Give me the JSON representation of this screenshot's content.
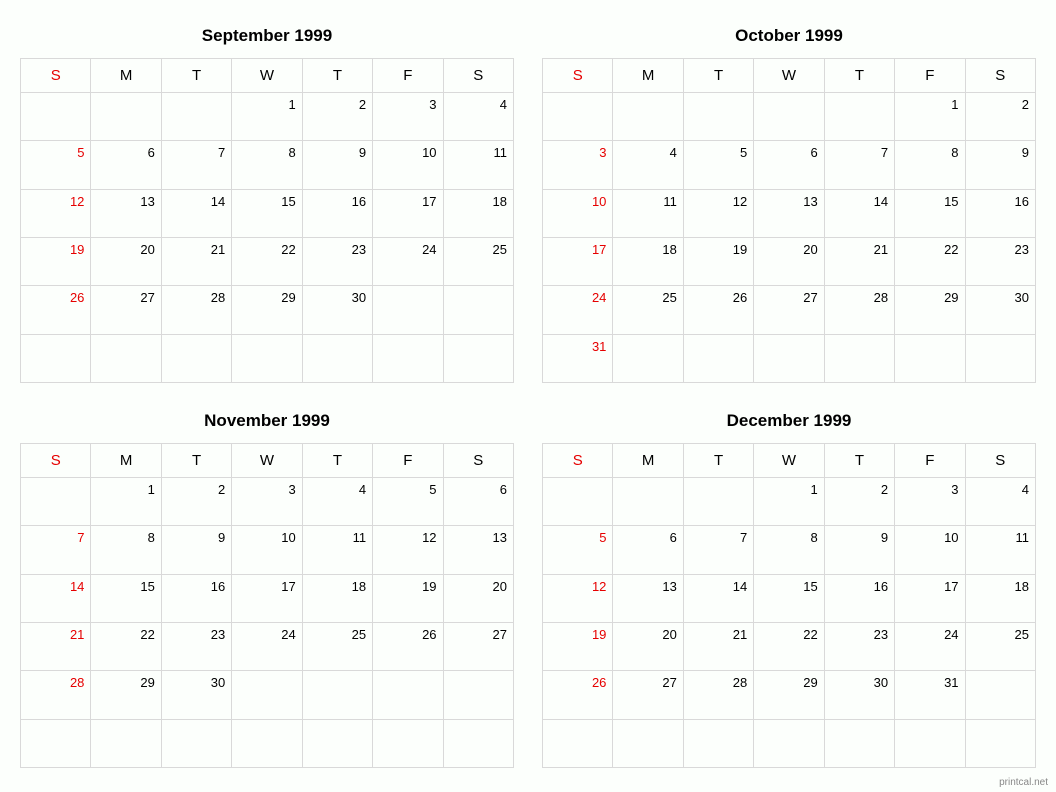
{
  "day_headers": [
    "S",
    "M",
    "T",
    "W",
    "T",
    "F",
    "S"
  ],
  "footer": "printcal.net",
  "border_color": "#d9d9d9",
  "sunday_color": "#e60000",
  "background_color": "#fcfffc",
  "months": [
    {
      "title": "September 1999",
      "weeks": [
        [
          "",
          "",
          "",
          "1",
          "2",
          "3",
          "4"
        ],
        [
          "5",
          "6",
          "7",
          "8",
          "9",
          "10",
          "11"
        ],
        [
          "12",
          "13",
          "14",
          "15",
          "16",
          "17",
          "18"
        ],
        [
          "19",
          "20",
          "21",
          "22",
          "23",
          "24",
          "25"
        ],
        [
          "26",
          "27",
          "28",
          "29",
          "30",
          "",
          ""
        ],
        [
          "",
          "",
          "",
          "",
          "",
          "",
          ""
        ]
      ]
    },
    {
      "title": "October 1999",
      "weeks": [
        [
          "",
          "",
          "",
          "",
          "",
          "1",
          "2"
        ],
        [
          "3",
          "4",
          "5",
          "6",
          "7",
          "8",
          "9"
        ],
        [
          "10",
          "11",
          "12",
          "13",
          "14",
          "15",
          "16"
        ],
        [
          "17",
          "18",
          "19",
          "20",
          "21",
          "22",
          "23"
        ],
        [
          "24",
          "25",
          "26",
          "27",
          "28",
          "29",
          "30"
        ],
        [
          "31",
          "",
          "",
          "",
          "",
          "",
          ""
        ]
      ]
    },
    {
      "title": "November 1999",
      "weeks": [
        [
          "",
          "1",
          "2",
          "3",
          "4",
          "5",
          "6"
        ],
        [
          "7",
          "8",
          "9",
          "10",
          "11",
          "12",
          "13"
        ],
        [
          "14",
          "15",
          "16",
          "17",
          "18",
          "19",
          "20"
        ],
        [
          "21",
          "22",
          "23",
          "24",
          "25",
          "26",
          "27"
        ],
        [
          "28",
          "29",
          "30",
          "",
          "",
          "",
          ""
        ],
        [
          "",
          "",
          "",
          "",
          "",
          "",
          ""
        ]
      ]
    },
    {
      "title": "December 1999",
      "weeks": [
        [
          "",
          "",
          "",
          "1",
          "2",
          "3",
          "4"
        ],
        [
          "5",
          "6",
          "7",
          "8",
          "9",
          "10",
          "11"
        ],
        [
          "12",
          "13",
          "14",
          "15",
          "16",
          "17",
          "18"
        ],
        [
          "19",
          "20",
          "21",
          "22",
          "23",
          "24",
          "25"
        ],
        [
          "26",
          "27",
          "28",
          "29",
          "30",
          "31",
          ""
        ],
        [
          "",
          "",
          "",
          "",
          "",
          "",
          ""
        ]
      ]
    }
  ]
}
